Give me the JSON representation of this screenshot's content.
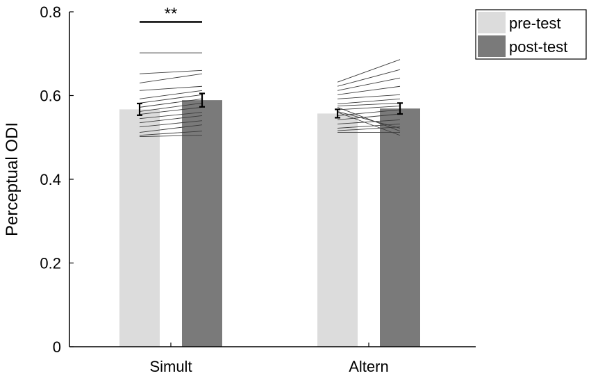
{
  "chart_data": {
    "type": "bar",
    "ylabel": "Perceptual ODI",
    "ylim": [
      0,
      0.8
    ],
    "yticks": [
      "0",
      "0.2",
      "0.4",
      "0.6",
      "0.8"
    ],
    "categories": [
      "Simult",
      "Altern"
    ],
    "series": [
      {
        "name": "pre-test",
        "color": "#dcdcdc",
        "values": [
          0.567,
          0.557
        ],
        "errors": [
          0.014,
          0.01
        ]
      },
      {
        "name": "post-test",
        "color": "#7a7a7a",
        "values": [
          0.589,
          0.569
        ],
        "errors": [
          0.016,
          0.013
        ]
      }
    ],
    "subject_lines": [
      [
        [
          0.702,
          0.702
        ],
        [
          0.652,
          0.66
        ],
        [
          0.63,
          0.652
        ],
        [
          0.612,
          0.622
        ],
        [
          0.592,
          0.612
        ],
        [
          0.582,
          0.602
        ],
        [
          0.572,
          0.592
        ],
        [
          0.562,
          0.582
        ],
        [
          0.555,
          0.572
        ],
        [
          0.545,
          0.56
        ],
        [
          0.535,
          0.552
        ],
        [
          0.525,
          0.54
        ],
        [
          0.512,
          0.53
        ],
        [
          0.505,
          0.515
        ],
        [
          0.502,
          0.505
        ]
      ],
      [
        [
          0.632,
          0.686
        ],
        [
          0.622,
          0.662
        ],
        [
          0.612,
          0.642
        ],
        [
          0.602,
          0.622
        ],
        [
          0.592,
          0.602
        ],
        [
          0.58,
          0.592
        ],
        [
          0.575,
          0.582
        ],
        [
          0.566,
          0.575
        ],
        [
          0.552,
          0.566
        ],
        [
          0.542,
          0.556
        ],
        [
          0.532,
          0.542
        ],
        [
          0.522,
          0.532
        ],
        [
          0.516,
          0.525
        ],
        [
          0.512,
          0.512
        ],
        [
          0.562,
          0.522
        ],
        [
          0.572,
          0.515
        ],
        [
          0.56,
          0.505
        ]
      ]
    ],
    "significance": [
      {
        "category": "Simult",
        "label": "**"
      }
    ],
    "legend": {
      "position": "top-right"
    },
    "grid": false
  }
}
